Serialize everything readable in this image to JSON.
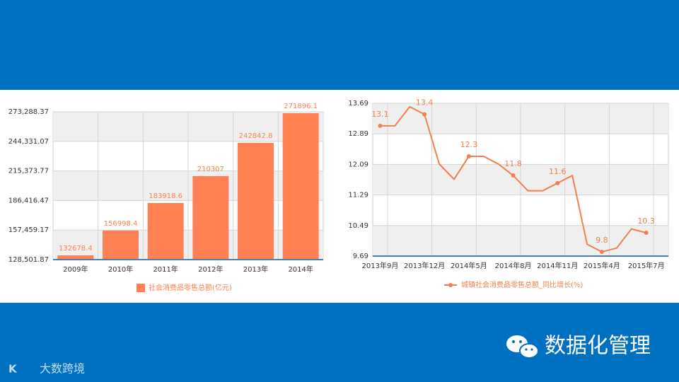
{
  "chart_data": [
    {
      "type": "bar",
      "categories": [
        "2009年",
        "2010年",
        "2011年",
        "2012年",
        "2013年",
        "2014年"
      ],
      "series": [
        {
          "name": "社会消费品零售总额(亿元)",
          "color": "#ff8052",
          "values": [
            132678.4,
            156998.4,
            183918.6,
            210307,
            242842.8,
            271896.1
          ]
        }
      ],
      "ylim": [
        128501.87,
        273288.37
      ],
      "yticks": [
        {
          "value": 128501.87,
          "label": "128,501.87"
        },
        {
          "value": 157459.17,
          "label": "157,459.17"
        },
        {
          "value": 186416.47,
          "label": "186,416.47"
        },
        {
          "value": 215373.77,
          "label": "215,373.77"
        },
        {
          "value": 244331.07,
          "label": "244,331.07"
        },
        {
          "value": 273288.37,
          "label": "273,288.37"
        }
      ],
      "grid": true,
      "legend": "bottom"
    },
    {
      "type": "line",
      "categories": [
        "2013年9月",
        null,
        null,
        "2013年12月",
        null,
        null,
        "2014年5月",
        null,
        null,
        "2014年8月",
        null,
        null,
        "2014年11月",
        null,
        null,
        "2015年4月",
        null,
        null,
        "2015年7月"
      ],
      "series": [
        {
          "name": "城镇社会消费品零售总额_同比增长(%)",
          "color": "#f0804f",
          "values": [
            13.1,
            13.1,
            13.6,
            13.4,
            12.1,
            11.7,
            12.3,
            12.3,
            12.1,
            11.8,
            11.4,
            11.4,
            11.6,
            11.8,
            10.0,
            9.8,
            9.9,
            10.4,
            10.3
          ]
        }
      ],
      "ylim": [
        9.69,
        13.69
      ],
      "yticks": [
        9.69,
        10.49,
        11.29,
        12.09,
        12.89,
        13.69
      ],
      "grid": true,
      "legend": "bottom"
    }
  ],
  "branding": {
    "left": "大数跨境",
    "right": "数据化管理"
  }
}
